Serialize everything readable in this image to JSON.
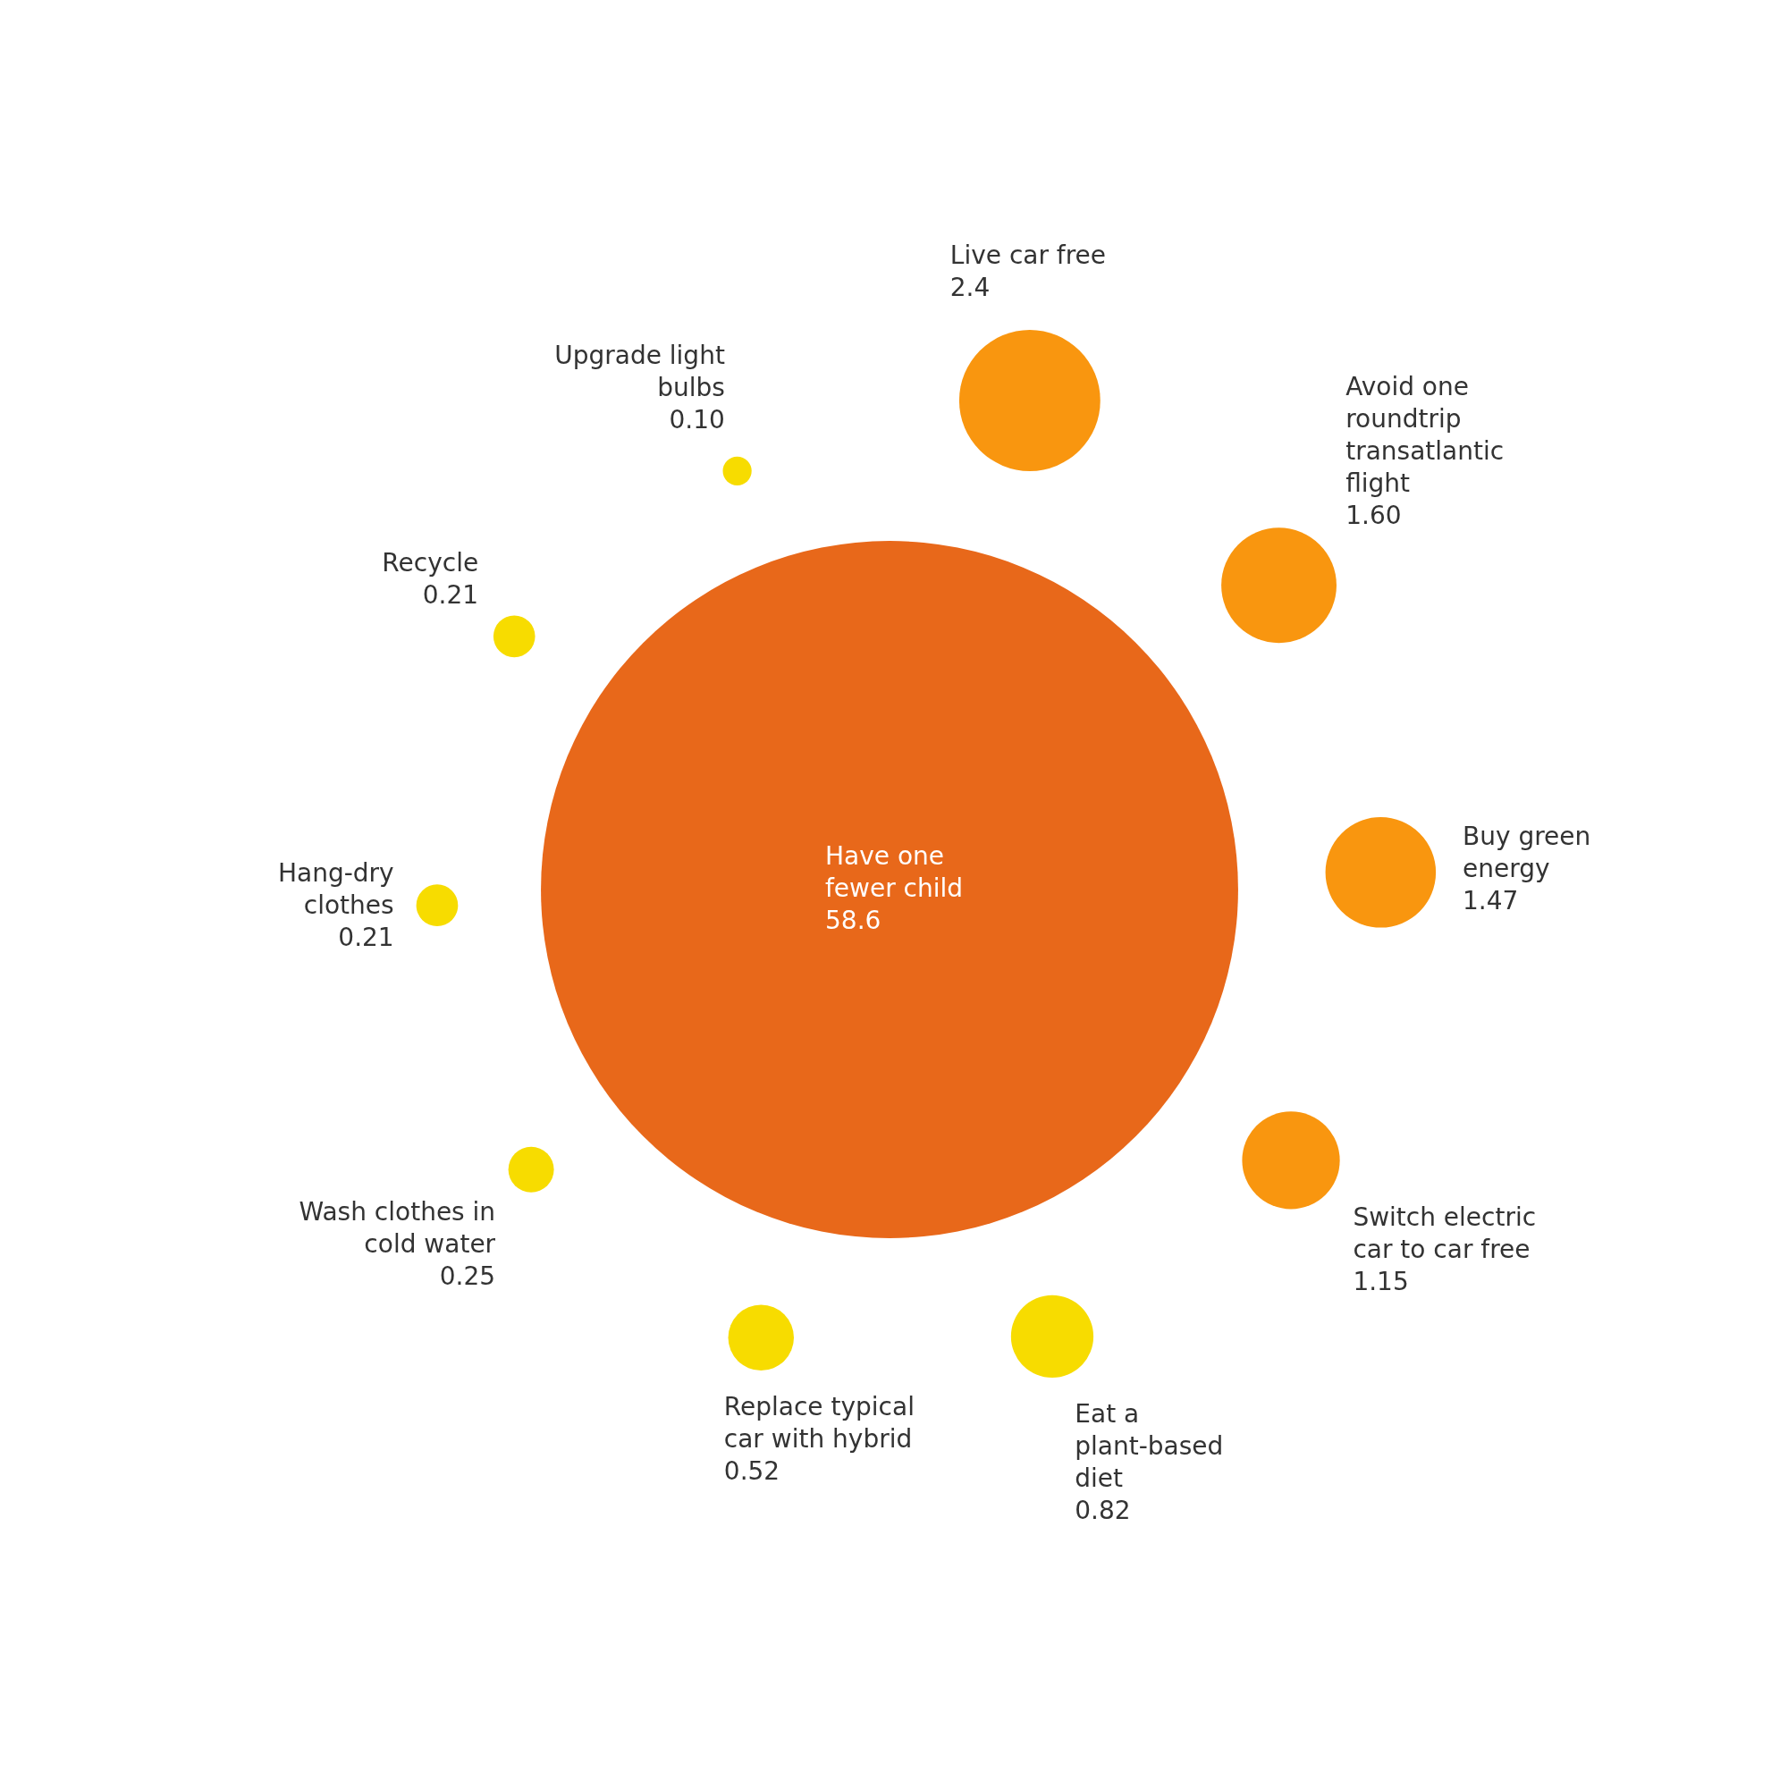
{
  "chart_data": {
    "type": "other",
    "categories": [
      "Have one fewer child",
      "Upgrade light bulbs",
      "Live car free",
      "Avoid one roundtrip transatlantic flight",
      "Buy green energy",
      "Switch electric car to car free",
      "Eat a plant-based diet",
      "Replace typical car with hybrid",
      "Wash clothes in cold water",
      "Hang-dry clothes",
      "Recycle"
    ],
    "values": [
      58.6,
      0.1,
      2.4,
      1.6,
      1.47,
      1.15,
      0.82,
      0.52,
      0.25,
      0.21,
      0.21
    ],
    "value_labels": [
      "58.6",
      "0.10",
      "2.4",
      "1.60",
      "1.47",
      "1.15",
      "0.82",
      "0.52",
      "0.25",
      "0.21",
      "0.21"
    ],
    "colors": [
      "#e8681a",
      "#f7dc00",
      "#f9960f",
      "#f9960f",
      "#f9960f",
      "#f9960f",
      "#f7dc00",
      "#f7dc00",
      "#f7dc00",
      "#f7dc00",
      "#f7dc00"
    ]
  }
}
